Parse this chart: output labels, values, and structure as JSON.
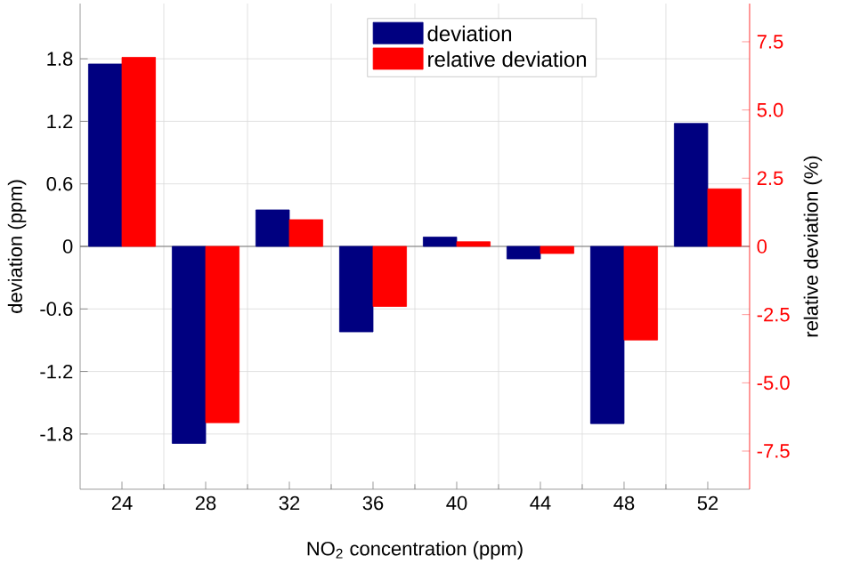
{
  "chart_data": {
    "type": "bar",
    "xlabel": "NO$_{2}$ concentration (ppm)",
    "ylabel": "deviation (ppm)",
    "y2label": "relative deviation (%)",
    "categories": [
      "24",
      "28",
      "32",
      "36",
      "40",
      "44",
      "48",
      "52"
    ],
    "series": [
      {
        "name": "deviation",
        "color": "#000080",
        "values": [
          1.75,
          -1.89,
          0.35,
          -0.82,
          0.09,
          -0.12,
          -1.7,
          1.18
        ]
      },
      {
        "name": "relative deviation",
        "color": "#ff0000",
        "axis": "y2",
        "values": [
          6.93,
          -6.46,
          0.98,
          -2.2,
          0.17,
          -0.26,
          -3.43,
          2.11
        ]
      }
    ],
    "ylim": [
      -2.33,
      2.33
    ],
    "yticks": [
      -1.8,
      -1.2,
      -0.6,
      0,
      0.6,
      1.2,
      1.8
    ],
    "y2lim": [
      -8.9,
      8.9
    ],
    "y2ticks": [
      -7.5,
      {
        "value": -5,
        "label": "-5.0"
      },
      -2.5,
      0,
      2.5,
      {
        "value": 5,
        "label": "5.0"
      },
      7.5
    ],
    "grid": true,
    "legend": "top"
  }
}
